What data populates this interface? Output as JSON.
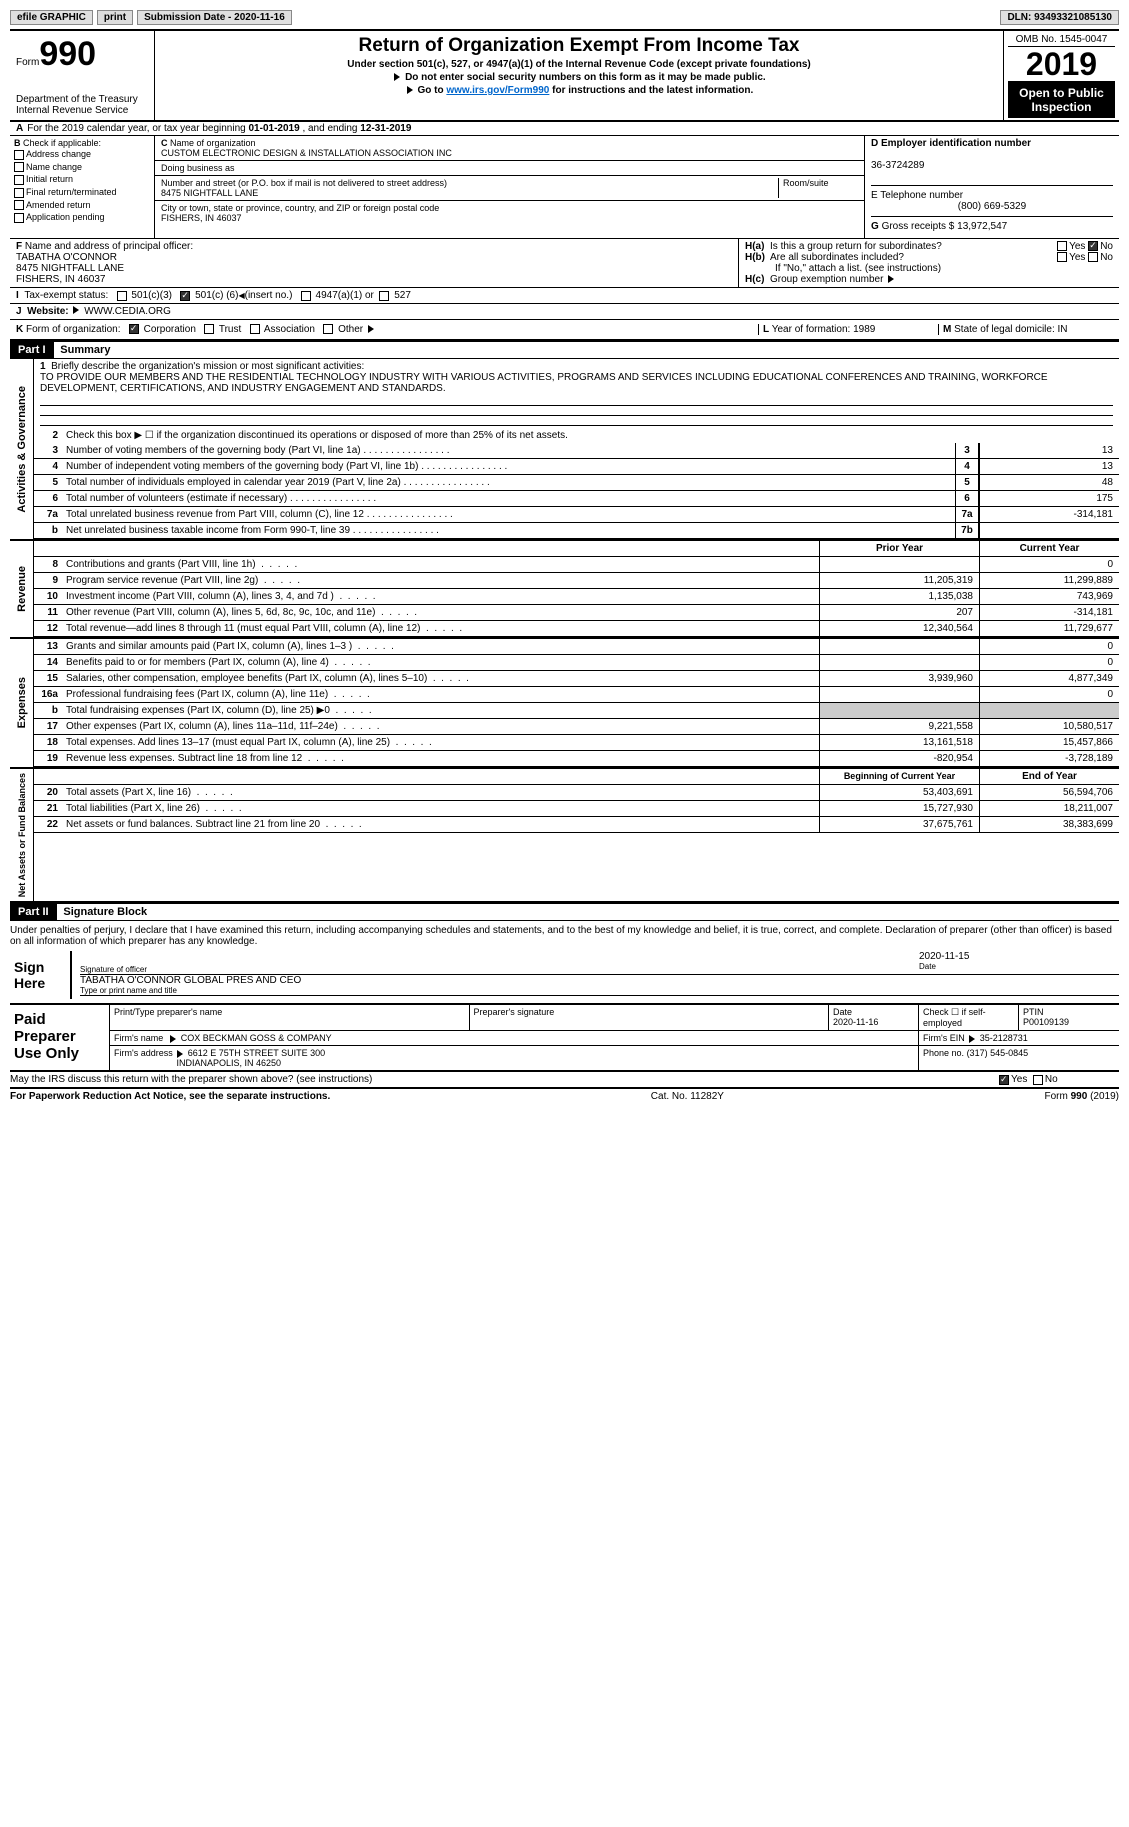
{
  "toolbar": {
    "efile": "efile GRAPHIC",
    "print": "print",
    "submission_label": "Submission Date -",
    "submission_date": "2020-11-16",
    "dln_label": "DLN:",
    "dln": "93493321085130"
  },
  "header": {
    "form_label": "Form",
    "form_number": "990",
    "title": "Return of Organization Exempt From Income Tax",
    "subtitle": "Under section 501(c), 527, or 4947(a)(1) of the Internal Revenue Code (except private foundations)",
    "note1": "Do not enter social security numbers on this form as it may be made public.",
    "note2_prefix": "Go to",
    "note2_link": "www.irs.gov/Form990",
    "note2_suffix": "for instructions and the latest information.",
    "dept": "Department of the Treasury\nInternal Revenue Service",
    "omb": "OMB No. 1545-0047",
    "year": "2019",
    "open_public": "Open to Public Inspection"
  },
  "row_a": {
    "prefix": "A",
    "text": "For the 2019 calendar year, or tax year beginning",
    "begin_date": "01-01-2019",
    "mid": ", and ending",
    "end_date": "12-31-2019"
  },
  "section_b": {
    "label": "B",
    "check_label": "Check if applicable:",
    "items": [
      "Address change",
      "Name change",
      "Initial return",
      "Final return/terminated",
      "Amended return",
      "Application pending"
    ]
  },
  "section_c": {
    "label": "C",
    "name_label": "Name of organization",
    "org_name": "CUSTOM ELECTRONIC DESIGN & INSTALLATION ASSOCIATION INC",
    "dba_label": "Doing business as",
    "street_label": "Number and street (or P.O. box if mail is not delivered to street address)",
    "room_label": "Room/suite",
    "street": "8475 NIGHTFALL LANE",
    "city_label": "City or town, state or province, country, and ZIP or foreign postal code",
    "city": "FISHERS, IN  46037"
  },
  "section_d": {
    "label": "D Employer identification number",
    "ein": "36-3724289"
  },
  "section_e": {
    "label": "E Telephone number",
    "phone": "(800) 669-5329"
  },
  "section_g": {
    "label": "G",
    "text": "Gross receipts $",
    "amount": "13,972,547"
  },
  "section_f": {
    "label": "F",
    "text": "Name and address of principal officer:",
    "name": "TABATHA O'CONNOR",
    "addr1": "8475 NIGHTFALL LANE",
    "addr2": "FISHERS, IN  46037"
  },
  "section_h": {
    "ha": "H(a)",
    "ha_text": "Is this a group return for subordinates?",
    "hb": "H(b)",
    "hb_text": "Are all subordinates included?",
    "hb_note": "If \"No,\" attach a list. (see instructions)",
    "hc": "H(c)",
    "hc_text": "Group exemption number"
  },
  "section_i": {
    "label": "I",
    "text": "Tax-exempt status:",
    "opt1": "501(c)(3)",
    "opt2_pre": "501(c) (",
    "opt2_num": "6",
    "opt2_post": ")",
    "opt2_hint": "(insert no.)",
    "opt3": "4947(a)(1) or",
    "opt4": "527"
  },
  "section_j": {
    "label": "J",
    "text": "Website:",
    "url": "WWW.CEDIA.ORG"
  },
  "section_k": {
    "label": "K",
    "text": "Form of organization:",
    "opts": [
      "Corporation",
      "Trust",
      "Association",
      "Other"
    ]
  },
  "section_l": {
    "label": "L",
    "text": "Year of formation:",
    "val": "1989"
  },
  "section_m": {
    "label": "M",
    "text": "State of legal domicile:",
    "val": "IN"
  },
  "part1": {
    "label": "Part I",
    "title": "Summary",
    "q1_num": "1",
    "q1": "Briefly describe the organization's mission or most significant activities:",
    "q1_answer": "TO PROVIDE OUR MEMBERS AND THE RESIDENTIAL TECHNOLOGY INDUSTRY WITH VARIOUS ACTIVITIES, PROGRAMS AND SERVICES INCLUDING EDUCATIONAL CONFERENCES AND TRAINING, WORKFORCE DEVELOPMENT, CERTIFICATIONS, AND INDUSTRY ENGAGEMENT AND STANDARDS.",
    "q2_num": "2",
    "q2": "Check this box ▶ ☐ if the organization discontinued its operations or disposed of more than 25% of its net assets.",
    "lines_single": [
      {
        "num": "3",
        "text": "Number of voting members of the governing body (Part VI, line 1a)",
        "box": "3",
        "val": "13"
      },
      {
        "num": "4",
        "text": "Number of independent voting members of the governing body (Part VI, line 1b)",
        "box": "4",
        "val": "13"
      },
      {
        "num": "5",
        "text": "Total number of individuals employed in calendar year 2019 (Part V, line 2a)",
        "box": "5",
        "val": "48"
      },
      {
        "num": "6",
        "text": "Total number of volunteers (estimate if necessary)",
        "box": "6",
        "val": "175"
      },
      {
        "num": "7a",
        "text": "Total unrelated business revenue from Part VIII, column (C), line 12",
        "box": "7a",
        "val": "-314,181"
      },
      {
        "num": "b",
        "text": "Net unrelated business taxable income from Form 990-T, line 39",
        "box": "7b",
        "val": ""
      }
    ],
    "col_headers": {
      "prior": "Prior Year",
      "current": "Current Year"
    },
    "revenue_lines": [
      {
        "num": "8",
        "text": "Contributions and grants (Part VIII, line 1h)",
        "prior": "",
        "current": "0"
      },
      {
        "num": "9",
        "text": "Program service revenue (Part VIII, line 2g)",
        "prior": "11,205,319",
        "current": "11,299,889"
      },
      {
        "num": "10",
        "text": "Investment income (Part VIII, column (A), lines 3, 4, and 7d )",
        "prior": "1,135,038",
        "current": "743,969"
      },
      {
        "num": "11",
        "text": "Other revenue (Part VIII, column (A), lines 5, 6d, 8c, 9c, 10c, and 11e)",
        "prior": "207",
        "current": "-314,181"
      },
      {
        "num": "12",
        "text": "Total revenue—add lines 8 through 11 (must equal Part VIII, column (A), line 12)",
        "prior": "12,340,564",
        "current": "11,729,677"
      }
    ],
    "expense_lines": [
      {
        "num": "13",
        "text": "Grants and similar amounts paid (Part IX, column (A), lines 1–3 )",
        "prior": "",
        "current": "0"
      },
      {
        "num": "14",
        "text": "Benefits paid to or for members (Part IX, column (A), line 4)",
        "prior": "",
        "current": "0"
      },
      {
        "num": "15",
        "text": "Salaries, other compensation, employee benefits (Part IX, column (A), lines 5–10)",
        "prior": "3,939,960",
        "current": "4,877,349"
      },
      {
        "num": "16a",
        "text": "Professional fundraising fees (Part IX, column (A), line 11e)",
        "prior": "",
        "current": "0"
      },
      {
        "num": "b",
        "text": "Total fundraising expenses (Part IX, column (D), line 25) ▶0",
        "prior": "shaded",
        "current": "shaded"
      },
      {
        "num": "17",
        "text": "Other expenses (Part IX, column (A), lines 11a–11d, 11f–24e)",
        "prior": "9,221,558",
        "current": "10,580,517"
      },
      {
        "num": "18",
        "text": "Total expenses. Add lines 13–17 (must equal Part IX, column (A), line 25)",
        "prior": "13,161,518",
        "current": "15,457,866"
      },
      {
        "num": "19",
        "text": "Revenue less expenses. Subtract line 18 from line 12",
        "prior": "-820,954",
        "current": "-3,728,189"
      }
    ],
    "net_headers": {
      "begin": "Beginning of Current Year",
      "end": "End of Year"
    },
    "net_lines": [
      {
        "num": "20",
        "text": "Total assets (Part X, line 16)",
        "prior": "53,403,691",
        "current": "56,594,706"
      },
      {
        "num": "21",
        "text": "Total liabilities (Part X, line 26)",
        "prior": "15,727,930",
        "current": "18,211,007"
      },
      {
        "num": "22",
        "text": "Net assets or fund balances. Subtract line 21 from line 20",
        "prior": "37,675,761",
        "current": "38,383,699"
      }
    ]
  },
  "part2": {
    "label": "Part II",
    "title": "Signature Block",
    "declaration": "Under penalties of perjury, I declare that I have examined this return, including accompanying schedules and statements, and to the best of my knowledge and belief, it is true, correct, and complete. Declaration of preparer (other than officer) is based on all information of which preparer has any knowledge.",
    "sign_here": "Sign Here",
    "sig_officer": "Signature of officer",
    "date_label": "Date",
    "sig_date": "2020-11-15",
    "officer_name": "TABATHA O'CONNOR GLOBAL PRES AND CEO",
    "type_name": "Type or print name and title",
    "paid_prep": "Paid Preparer Use Only",
    "prep_name_label": "Print/Type preparer's name",
    "prep_sig_label": "Preparer's signature",
    "prep_date_label": "Date",
    "prep_date": "2020-11-16",
    "check_if": "Check ☐ if self-employed",
    "ptin_label": "PTIN",
    "ptin": "P00109139",
    "firm_name_label": "Firm's name",
    "firm_name": "COX BECKMAN GOSS & COMPANY",
    "firm_ein_label": "Firm's EIN",
    "firm_ein": "35-2128731",
    "firm_addr_label": "Firm's address",
    "firm_addr": "6612 E 75TH STREET SUITE 300",
    "firm_city": "INDIANAPOLIS, IN  46250",
    "phone_label": "Phone no.",
    "phone": "(317) 545-0845",
    "irs_discuss": "May the IRS discuss this return with the preparer shown above? (see instructions)"
  },
  "footer": {
    "paperwork": "For Paperwork Reduction Act Notice, see the separate instructions.",
    "cat": "Cat. No. 11282Y",
    "form": "Form",
    "form_num": "990",
    "form_year": "(2019)"
  },
  "yes": "Yes",
  "no": "No",
  "side_labels": {
    "gov": "Activities & Governance",
    "rev": "Revenue",
    "exp": "Expenses",
    "net": "Net Assets or Fund Balances"
  }
}
